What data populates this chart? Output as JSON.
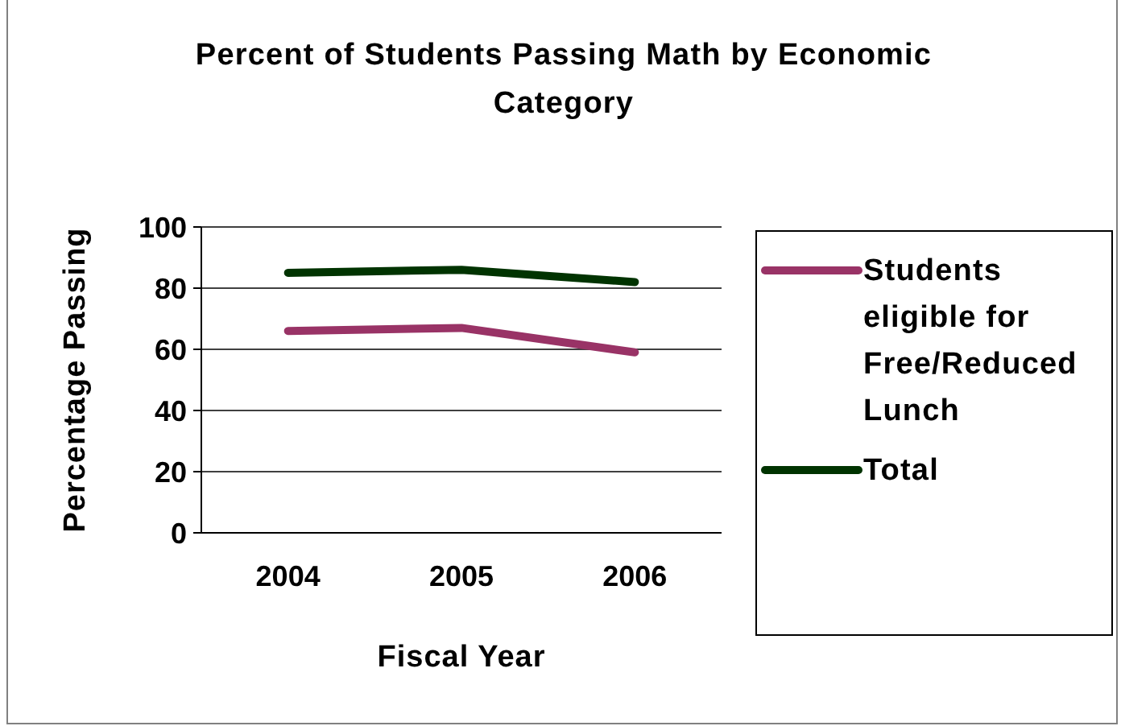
{
  "chart_data": {
    "type": "line",
    "title": "Percent of Students Passing Math by Economic Category",
    "xlabel": "Fiscal Year",
    "ylabel": "Percentage Passing",
    "categories": [
      "2004",
      "2005",
      "2006"
    ],
    "series": [
      {
        "name": "Students eligible for Free/Reduced Lunch",
        "color": "#993366",
        "values": [
          66,
          67,
          59
        ]
      },
      {
        "name": "Total",
        "color": "#003300",
        "values": [
          85,
          86,
          82
        ]
      }
    ],
    "ylim": [
      0,
      100
    ],
    "yticks": [
      0,
      20,
      40,
      60,
      80,
      100
    ],
    "grid": "y",
    "legend": "right"
  }
}
